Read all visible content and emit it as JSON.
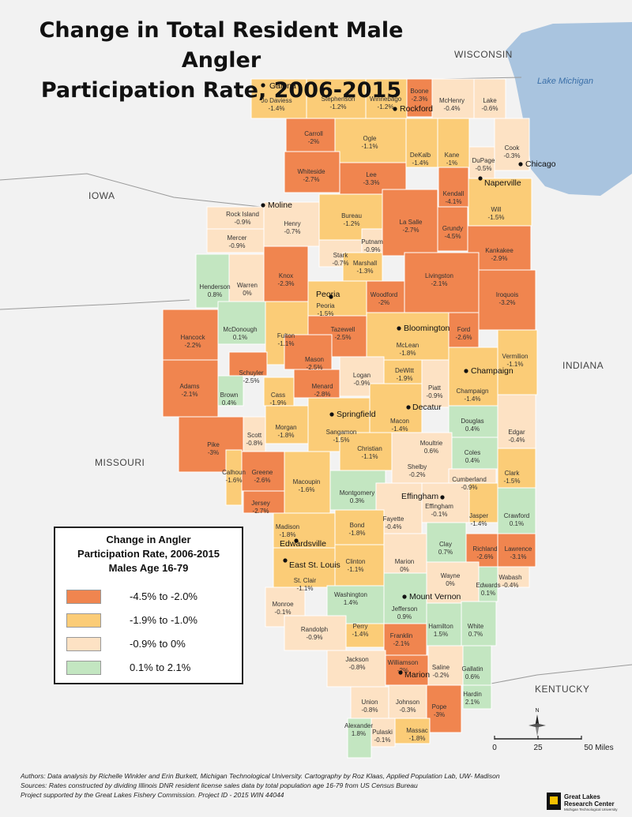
{
  "title": {
    "line1": "Change in Total Resident Male Angler",
    "line2": "Participation Rate, 2006-2015"
  },
  "state_labels": {
    "wisconsin": "WISCONSIN",
    "iowa": "IOWA",
    "indiana": "INDIANA",
    "missouri": "MISSOURI",
    "kentucky": "KENTUCKY"
  },
  "lake_label": "Lake Michigan",
  "legend": {
    "title_line1": "Change in Angler",
    "title_line2": "Participation Rate, 2006-2015",
    "title_line3": "Males Age 16-79",
    "classes": [
      {
        "label": "-4.5% to -2.0%",
        "color": "#f0854f"
      },
      {
        "label": "-1.9% to -1.0%",
        "color": "#fbcc77"
      },
      {
        "label": "-0.9% to 0%",
        "color": "#fde2c4"
      },
      {
        "label": "0.1% to 2.1%",
        "color": "#c3e6c1"
      }
    ]
  },
  "colors": {
    "background": "#f2f2f2",
    "lake": "#a9c4df",
    "county_border": "#ffffff",
    "state_border": "#9a9a9a"
  },
  "counties": [
    {
      "name": "Jo Daviess",
      "value": "-1.4%"
    },
    {
      "name": "Stephenson",
      "value": "-1.2%"
    },
    {
      "name": "Winnebago",
      "value": "-1.2%"
    },
    {
      "name": "Boone",
      "value": "-2.3%"
    },
    {
      "name": "McHenry",
      "value": "-0.4%"
    },
    {
      "name": "Lake",
      "value": "-0.6%"
    },
    {
      "name": "Carroll",
      "value": "-2%"
    },
    {
      "name": "Ogle",
      "value": "-1.1%"
    },
    {
      "name": "DeKalb",
      "value": "-1.4%"
    },
    {
      "name": "Kane",
      "value": "-1%"
    },
    {
      "name": "DuPage",
      "value": "-0.5%"
    },
    {
      "name": "Cook",
      "value": "-0.3%"
    },
    {
      "name": "Whiteside",
      "value": "-2.7%"
    },
    {
      "name": "Lee",
      "value": "-3.3%"
    },
    {
      "name": "Kendall",
      "value": "-4.1%"
    },
    {
      "name": "Will",
      "value": "-1.5%"
    },
    {
      "name": "Rock Island",
      "value": "-0.9%"
    },
    {
      "name": "Henry",
      "value": "-0.7%"
    },
    {
      "name": "Bureau",
      "value": "-1.2%"
    },
    {
      "name": "La Salle",
      "value": "-2.7%"
    },
    {
      "name": "Grundy",
      "value": "-4.5%"
    },
    {
      "name": "Mercer",
      "value": "-0.9%"
    },
    {
      "name": "Putnam",
      "value": "-0.9%"
    },
    {
      "name": "Kankakee",
      "value": "-2.9%"
    },
    {
      "name": "Stark",
      "value": "-0.7%"
    },
    {
      "name": "Marshall",
      "value": "-1.3%"
    },
    {
      "name": "Knox",
      "value": "-2.3%"
    },
    {
      "name": "Henderson",
      "value": "0.8%"
    },
    {
      "name": "Warren",
      "value": "0%"
    },
    {
      "name": "Livingston",
      "value": "-2.1%"
    },
    {
      "name": "Iroquois",
      "value": "-3.2%"
    },
    {
      "name": "Woodford",
      "value": "-2%"
    },
    {
      "name": "Peoria",
      "value": "-1.5%"
    },
    {
      "name": "McDonough",
      "value": "0.1%"
    },
    {
      "name": "Fulton",
      "value": "-1.1%"
    },
    {
      "name": "Tazewell",
      "value": "-2.5%"
    },
    {
      "name": "McLean",
      "value": "-1.8%"
    },
    {
      "name": "Ford",
      "value": "-2.6%"
    },
    {
      "name": "Hancock",
      "value": "-2.2%"
    },
    {
      "name": "Vermilion",
      "value": "-1.1%"
    },
    {
      "name": "Mason",
      "value": "-2.5%"
    },
    {
      "name": "Schuyler",
      "value": "-2.5%"
    },
    {
      "name": "Logan",
      "value": "-0.9%"
    },
    {
      "name": "DeWitt",
      "value": "-1.9%"
    },
    {
      "name": "Champaign",
      "value": "-1.4%"
    },
    {
      "name": "Adams",
      "value": "-2.1%"
    },
    {
      "name": "Brown",
      "value": "0.4%"
    },
    {
      "name": "Cass",
      "value": "-1.9%"
    },
    {
      "name": "Menard",
      "value": "-2.8%"
    },
    {
      "name": "Piatt",
      "value": "-0.9%"
    },
    {
      "name": "Douglas",
      "value": "0.4%"
    },
    {
      "name": "Edgar",
      "value": "-0.4%"
    },
    {
      "name": "Scott",
      "value": "-0.8%"
    },
    {
      "name": "Morgan",
      "value": "-1.8%"
    },
    {
      "name": "Sangamon",
      "value": "-1.5%"
    },
    {
      "name": "Macon",
      "value": "-1.4%"
    },
    {
      "name": "Moultrie",
      "value": "0.6%"
    },
    {
      "name": "Coles",
      "value": "0.4%"
    },
    {
      "name": "Pike",
      "value": "-3%"
    },
    {
      "name": "Christian",
      "value": "-1.1%"
    },
    {
      "name": "Shelby",
      "value": "-0.2%"
    },
    {
      "name": "Calhoun",
      "value": "-1.6%"
    },
    {
      "name": "Greene",
      "value": "-2.6%"
    },
    {
      "name": "Macoupin",
      "value": "-1.6%"
    },
    {
      "name": "Clark",
      "value": "-1.5%"
    },
    {
      "name": "Cumberland",
      "value": "-0.9%"
    },
    {
      "name": "Montgomery",
      "value": "0.3%"
    },
    {
      "name": "Jersey",
      "value": "-2.7%"
    },
    {
      "name": "Effingham",
      "value": "-0.1%"
    },
    {
      "name": "Fayette",
      "value": "-0.4%"
    },
    {
      "name": "Jasper",
      "value": "-1.4%"
    },
    {
      "name": "Crawford",
      "value": "0.1%"
    },
    {
      "name": "Madison",
      "value": "-1.8%"
    },
    {
      "name": "Bond",
      "value": "-1.8%"
    },
    {
      "name": "Marion",
      "value": "0%"
    },
    {
      "name": "Clay",
      "value": "0.7%"
    },
    {
      "name": "Richland",
      "value": "-2.6%"
    },
    {
      "name": "Lawrence",
      "value": "-3.1%"
    },
    {
      "name": "Clinton",
      "value": "-1.1%"
    },
    {
      "name": "St. Clair",
      "value": "-1.1%"
    },
    {
      "name": "Wayne",
      "value": "0%"
    },
    {
      "name": "Wabash",
      "value": "-0.4%"
    },
    {
      "name": "Edwards",
      "value": "0.1%"
    },
    {
      "name": "Washington",
      "value": "1.4%"
    },
    {
      "name": "Monroe",
      "value": "-0.1%"
    },
    {
      "name": "Jefferson",
      "value": "0.9%"
    },
    {
      "name": "Randolph",
      "value": "-0.9%"
    },
    {
      "name": "Perry",
      "value": "-1.4%"
    },
    {
      "name": "Hamilton",
      "value": "1.5%"
    },
    {
      "name": "White",
      "value": "0.7%"
    },
    {
      "name": "Franklin",
      "value": "-2.1%"
    },
    {
      "name": "Jackson",
      "value": "-0.8%"
    },
    {
      "name": "Williamson",
      "value": "-2%"
    },
    {
      "name": "Saline",
      "value": "-0.2%"
    },
    {
      "name": "Gallatin",
      "value": "0.6%"
    },
    {
      "name": "Union",
      "value": "-0.8%"
    },
    {
      "name": "Johnson",
      "value": "-0.3%"
    },
    {
      "name": "Hardin",
      "value": "2.1%"
    },
    {
      "name": "Pope",
      "value": "-3%"
    },
    {
      "name": "Alexander",
      "value": "1.8%"
    },
    {
      "name": "Pulaski",
      "value": "-0.1%"
    },
    {
      "name": "Massac",
      "value": "-1.8%"
    }
  ],
  "cities": [
    {
      "name": "Galena"
    },
    {
      "name": "Rockford"
    },
    {
      "name": "Chicago"
    },
    {
      "name": "Naperville"
    },
    {
      "name": "Moline"
    },
    {
      "name": "Peoria"
    },
    {
      "name": "Bloomington"
    },
    {
      "name": "Champaign"
    },
    {
      "name": "Decatur"
    },
    {
      "name": "Springfield"
    },
    {
      "name": "Effingham"
    },
    {
      "name": "Edwardsville"
    },
    {
      "name": "East St. Louis"
    },
    {
      "name": "Mount Vernon"
    },
    {
      "name": "Marion"
    }
  ],
  "scale_bar": {
    "ticks": [
      "0",
      "25",
      "50 Miles"
    ]
  },
  "north_label": "N",
  "footer": {
    "line1": "Authors: Data analysis by Richelle Winkler and Erin Burkett, Michigan Technological University. Cartography by Roz Klaas, Applied Population Lab, UW- Madison",
    "line2": "Sources: Rates constructed by dividing Illinois DNR resident license sales data by total population age 16-79 from US Census Bureau",
    "line3": "Project supported by the Great Lakes Fishery Commission. Project ID - 2015 WIN 44044"
  },
  "logo": {
    "line1": "Great Lakes",
    "line2": "Research Center",
    "line3": "Michigan Technological University"
  }
}
